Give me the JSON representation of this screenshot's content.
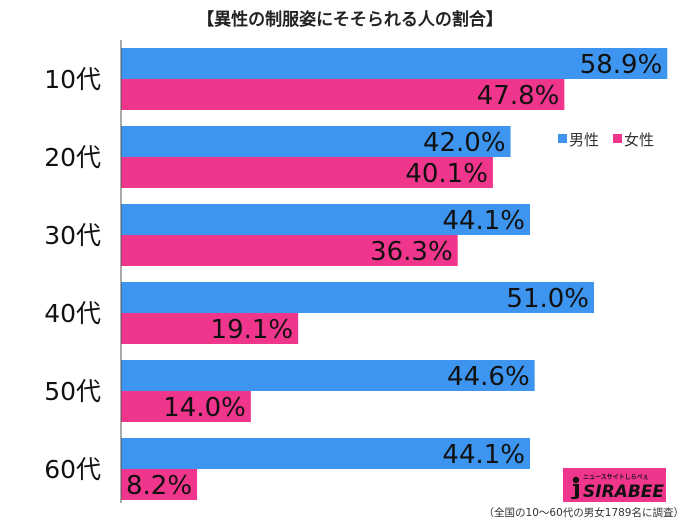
{
  "chart_data": {
    "type": "bar",
    "orientation": "horizontal",
    "title": "【異性の制服姿にそそられる人の割合】",
    "categories": [
      "10代",
      "20代",
      "30代",
      "40代",
      "50代",
      "60代"
    ],
    "series": [
      {
        "name": "男性",
        "values": [
          58.9,
          42.0,
          44.1,
          51.0,
          44.6,
          44.1
        ],
        "color": "#3d95f0"
      },
      {
        "name": "女性",
        "values": [
          47.8,
          40.1,
          36.3,
          19.1,
          14.0,
          8.2
        ],
        "color": "#f0358c"
      }
    ],
    "value_suffix": "%",
    "xlim": [
      0,
      62
    ],
    "legend_position": "right",
    "grid": false
  },
  "footnote": "（全国の10～60代の男女1789名に調査）",
  "logo": {
    "tagline": "ニュースサイトしらべぇ",
    "name": "SIRABEE"
  }
}
